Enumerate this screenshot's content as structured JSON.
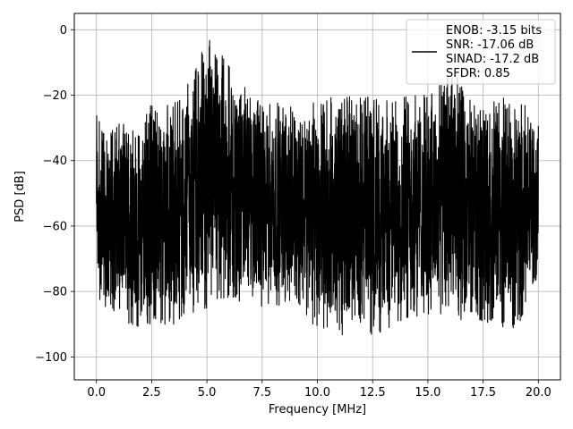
{
  "chart_data": {
    "type": "line",
    "title": "",
    "xlabel": "Frequency [MHz]",
    "ylabel": "PSD [dB]",
    "xlim": [
      -1.0,
      21.0
    ],
    "ylim": [
      -107.0,
      5.0
    ],
    "xticks": [
      0.0,
      2.5,
      5.0,
      7.5,
      10.0,
      12.5,
      15.0,
      17.5,
      20.0
    ],
    "xtick_labels": [
      "0.0",
      "2.5",
      "5.0",
      "7.5",
      "10.0",
      "12.5",
      "15.0",
      "17.5",
      "20.0"
    ],
    "yticks": [
      0,
      -20,
      -40,
      -60,
      -80,
      -100
    ],
    "ytick_labels": [
      "0",
      "−20",
      "−40",
      "−60",
      "−80",
      "−100"
    ],
    "grid": true,
    "legend_position": "top-right",
    "series": [
      {
        "name": "ENOB: -3.15 bits\nSNR: -17.06 dB\nSINAD: -17.2 dB\nSFDR: 0.85",
        "color": "#000000",
        "x_range": [
          0.0,
          20.0
        ],
        "envelope": {
          "x": [
            0.0,
            0.1,
            0.5,
            1.0,
            1.5,
            2.0,
            2.3,
            2.5,
            3.0,
            3.5,
            4.0,
            4.5,
            5.0,
            5.5,
            6.0,
            7.0,
            8.0,
            9.0,
            10.0,
            11.0,
            12.0,
            13.0,
            14.0,
            15.0,
            16.0,
            17.0,
            18.0,
            19.0,
            20.0
          ],
          "top": [
            -15,
            -27,
            -33,
            -28,
            -30,
            -33,
            -25,
            -22,
            -24,
            -22,
            -18,
            -12,
            0,
            -6,
            -10,
            -20,
            -22,
            -24,
            -22,
            -20,
            -20,
            -22,
            -20,
            -20,
            -12,
            -20,
            -20,
            -22,
            -25
          ],
          "bottom": [
            -68,
            -83,
            -87,
            -86,
            -90,
            -91,
            -102,
            -88,
            -90,
            -90,
            -88,
            -86,
            -85,
            -82,
            -82,
            -84,
            -85,
            -82,
            -92,
            -93,
            -95,
            -92,
            -88,
            -87,
            -90,
            -88,
            -90,
            -92,
            -75
          ],
          "mean": -55
        }
      }
    ]
  }
}
